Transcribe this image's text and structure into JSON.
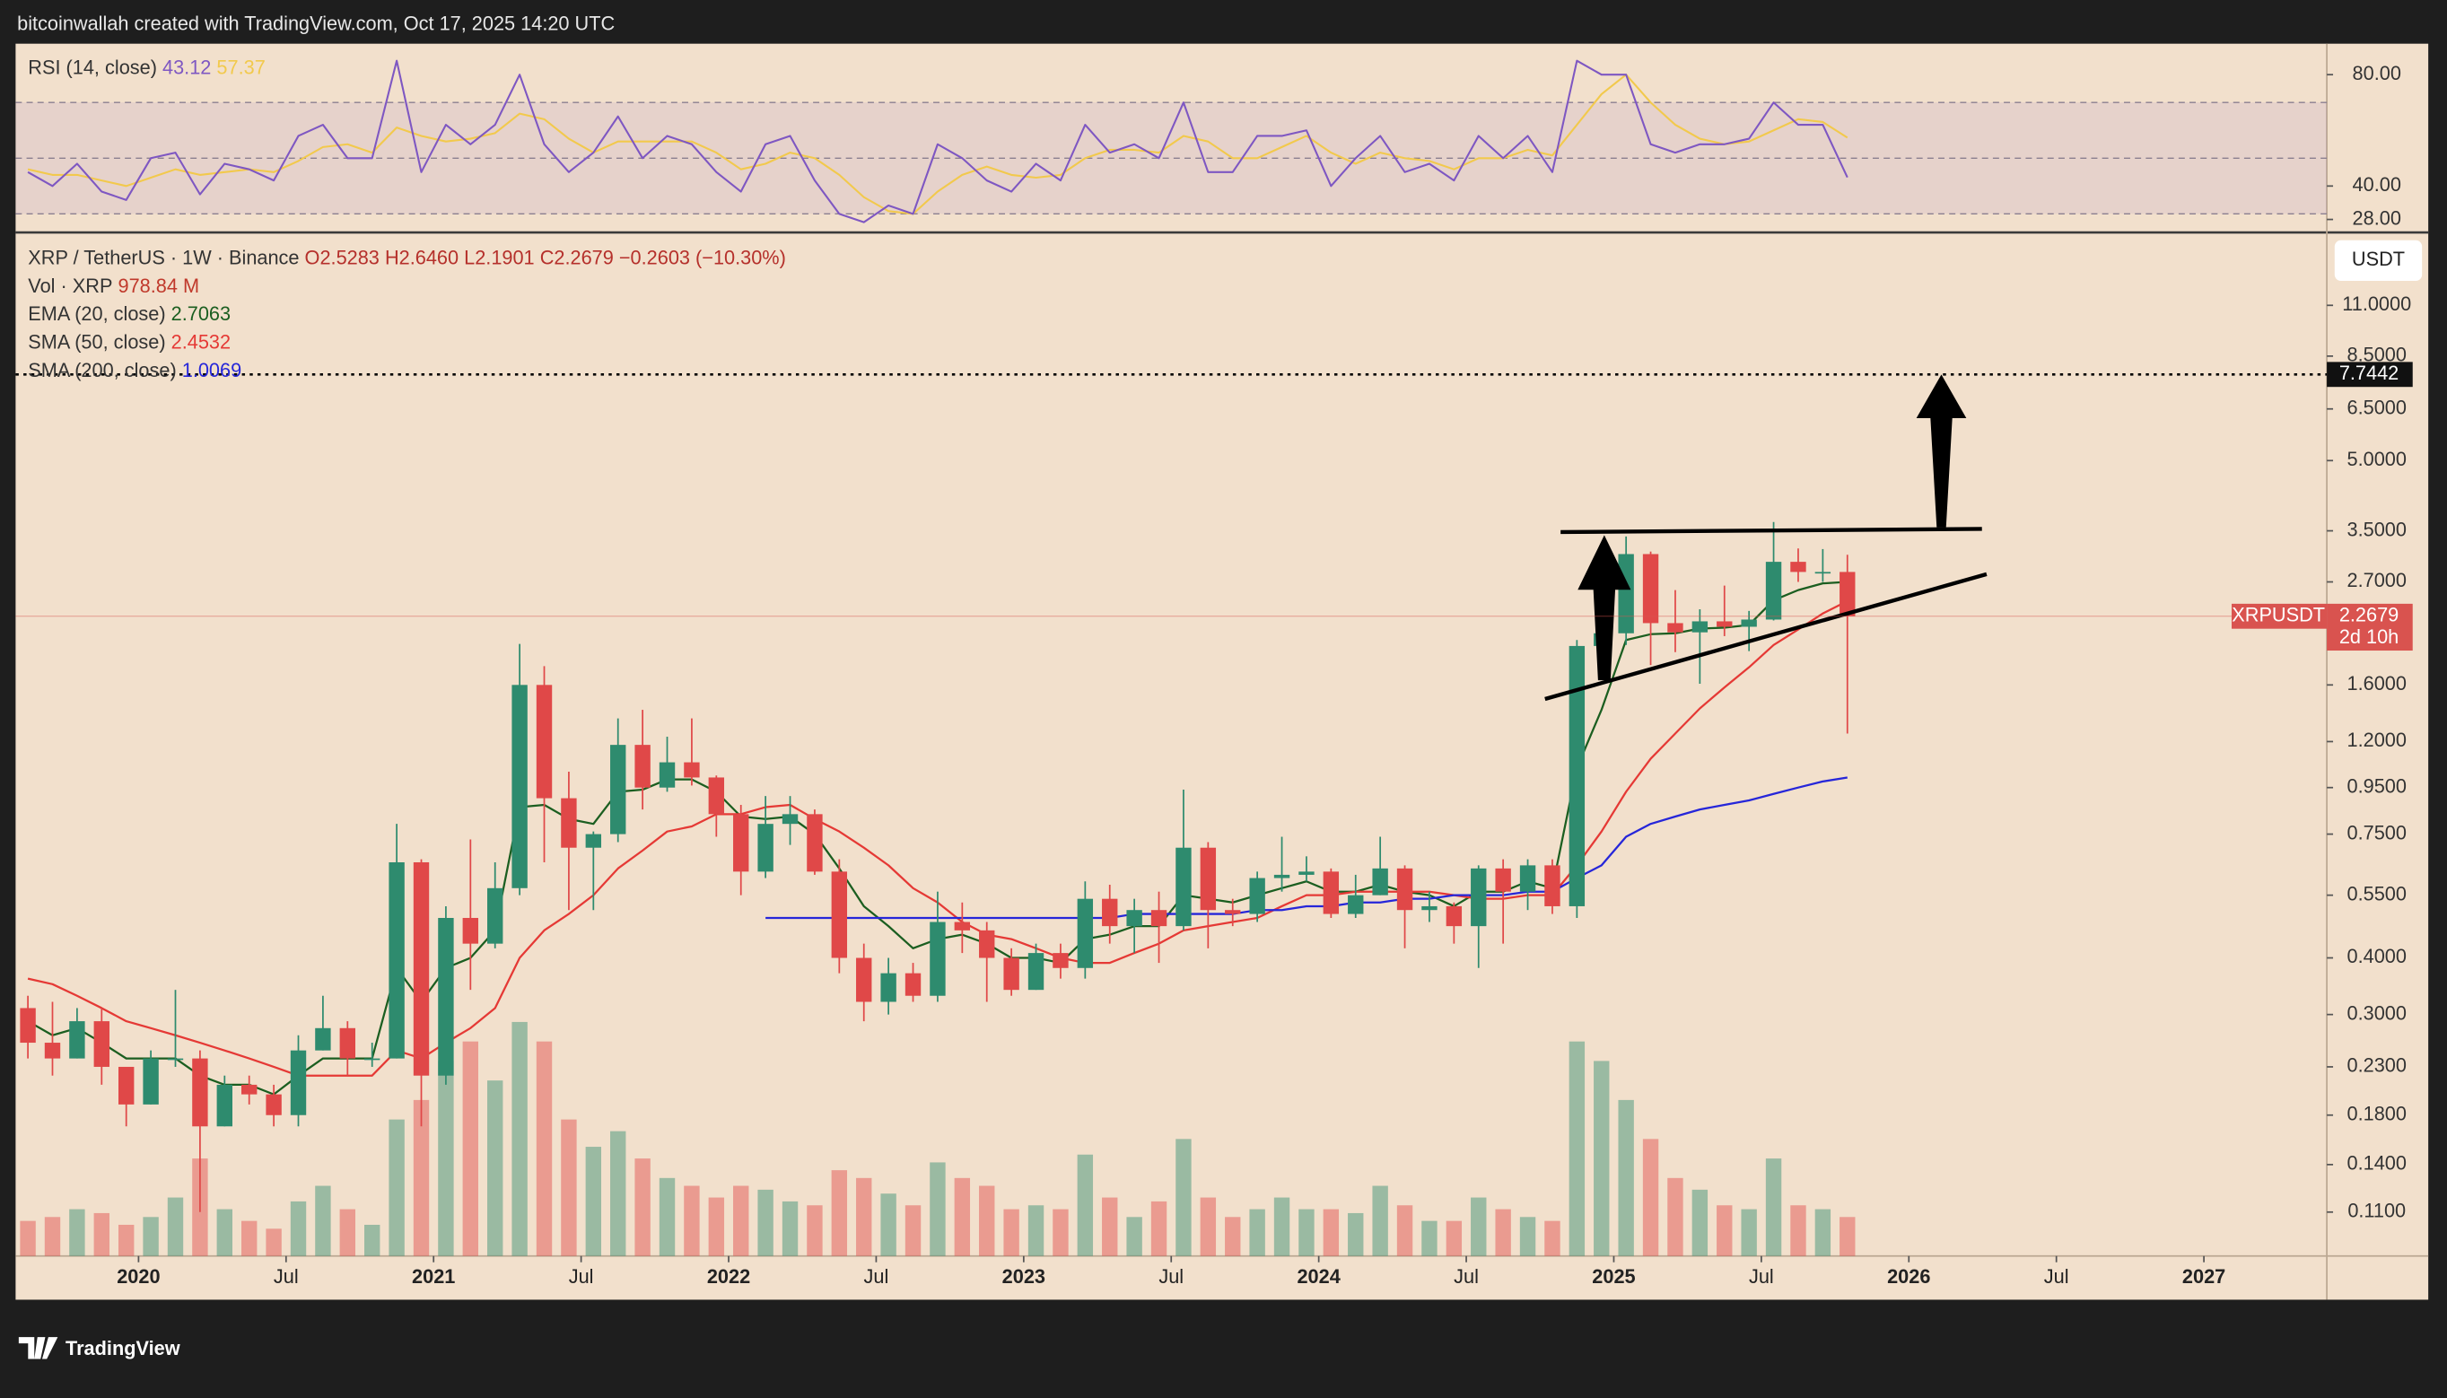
{
  "header": {
    "text": "bitcoinwallah created with TradingView.com, Oct 17, 2025 14:20 UTC"
  },
  "footer": {
    "logo": "TradingView"
  },
  "chart_data": {
    "type": "candlestick",
    "symbol": "XRP / TetherUS · 1W · Binance",
    "ohlc_labels": [
      "O2.5283",
      "H2.6460",
      "L2.1901",
      "C2.2679"
    ],
    "change": "−0.2603 (−10.30%)",
    "currency": "USDT",
    "up_color": "#2e8b6e",
    "down_color": "#e04848",
    "log_scale": true,
    "grid": false,
    "ylim": [
      0.088,
      15.8
    ],
    "yticks": [
      {
        "value": 0.11,
        "label": "0.1100"
      },
      {
        "value": 0.14,
        "label": "0.1400"
      },
      {
        "value": 0.18,
        "label": "0.1800"
      },
      {
        "value": 0.23,
        "label": "0.2300"
      },
      {
        "value": 0.3,
        "label": "0.3000"
      },
      {
        "value": 0.4,
        "label": "0.4000"
      },
      {
        "value": 0.55,
        "label": "0.5500"
      },
      {
        "value": 0.75,
        "label": "0.7500"
      },
      {
        "value": 0.95,
        "label": "0.9500"
      },
      {
        "value": 1.2,
        "label": "1.2000"
      },
      {
        "value": 1.6,
        "label": "1.6000"
      },
      {
        "value": 2.7,
        "label": "2.7000"
      },
      {
        "value": 3.5,
        "label": "3.5000"
      },
      {
        "value": 5,
        "label": "5.0000"
      },
      {
        "value": 6.5,
        "label": "6.5000"
      },
      {
        "value": 8.5,
        "label": "8.5000"
      },
      {
        "value": 11,
        "label": "11.0000"
      }
    ],
    "xlim": [
      "2019-08",
      "2027-06"
    ],
    "xticks": [
      {
        "value": "2020-01",
        "label": "2020"
      },
      {
        "value": "2020-07",
        "label": "Jul"
      },
      {
        "value": "2021-01",
        "label": "2021"
      },
      {
        "value": "2021-07",
        "label": "Jul"
      },
      {
        "value": "2022-01",
        "label": "2022"
      },
      {
        "value": "2022-07",
        "label": "Jul"
      },
      {
        "value": "2023-01",
        "label": "2023"
      },
      {
        "value": "2023-07",
        "label": "Jul"
      },
      {
        "value": "2024-01",
        "label": "2024"
      },
      {
        "value": "2024-07",
        "label": "Jul"
      },
      {
        "value": "2025-01",
        "label": "2025"
      },
      {
        "value": "2025-07",
        "label": "Jul"
      },
      {
        "value": "2026-01",
        "label": "2026"
      },
      {
        "value": "2026-07",
        "label": "Jul"
      },
      {
        "value": "2027-01",
        "label": "2027"
      }
    ],
    "x": [
      "2019-08",
      "2019-09",
      "2019-10",
      "2019-11",
      "2019-12",
      "2020-01",
      "2020-02",
      "2020-03",
      "2020-04",
      "2020-05",
      "2020-06",
      "2020-07",
      "2020-08",
      "2020-09",
      "2020-10",
      "2020-11",
      "2020-12",
      "2021-01",
      "2021-02",
      "2021-03",
      "2021-04",
      "2021-05",
      "2021-06",
      "2021-07",
      "2021-08",
      "2021-09",
      "2021-10",
      "2021-11",
      "2021-12",
      "2022-01",
      "2022-02",
      "2022-03",
      "2022-04",
      "2022-05",
      "2022-06",
      "2022-07",
      "2022-08",
      "2022-09",
      "2022-10",
      "2022-11",
      "2022-12",
      "2023-01",
      "2023-02",
      "2023-03",
      "2023-04",
      "2023-05",
      "2023-06",
      "2023-07",
      "2023-08",
      "2023-09",
      "2023-10",
      "2023-11",
      "2023-12",
      "2024-01",
      "2024-02",
      "2024-03",
      "2024-04",
      "2024-05",
      "2024-06",
      "2024-07",
      "2024-08",
      "2024-09",
      "2024-10",
      "2024-11",
      "2024-12",
      "2025-01",
      "2025-02",
      "2025-03",
      "2025-04",
      "2025-05",
      "2025-06",
      "2025-07",
      "2025-08",
      "2025-09",
      "2025-10"
    ],
    "open": [
      0.31,
      0.26,
      0.24,
      0.29,
      0.23,
      0.19,
      0.24,
      0.24,
      0.17,
      0.21,
      0.2,
      0.18,
      0.25,
      0.28,
      0.24,
      0.24,
      0.65,
      0.22,
      0.49,
      0.43,
      0.57,
      1.6,
      0.9,
      0.7,
      0.75,
      1.18,
      0.95,
      1.08,
      1.0,
      0.83,
      0.62,
      0.79,
      0.83,
      0.62,
      0.4,
      0.32,
      0.37,
      0.33,
      0.48,
      0.46,
      0.4,
      0.34,
      0.41,
      0.38,
      0.54,
      0.47,
      0.51,
      0.47,
      0.7,
      0.51,
      0.5,
      0.6,
      0.61,
      0.62,
      0.5,
      0.55,
      0.63,
      0.51,
      0.52,
      0.47,
      0.63,
      0.56,
      0.64,
      0.52,
      1.95,
      2.08,
      3.11,
      2.19,
      2.09,
      2.21,
      2.15,
      2.23,
      2.99,
      2.84,
      2.84
    ],
    "high": [
      0.33,
      0.32,
      0.31,
      0.31,
      0.23,
      0.25,
      0.34,
      0.25,
      0.22,
      0.22,
      0.21,
      0.27,
      0.33,
      0.29,
      0.26,
      0.79,
      0.66,
      0.52,
      0.73,
      0.65,
      1.97,
      1.76,
      1.03,
      0.76,
      1.35,
      1.41,
      1.23,
      1.35,
      1.01,
      0.87,
      0.91,
      0.91,
      0.85,
      0.66,
      0.43,
      0.4,
      0.39,
      0.56,
      0.53,
      0.48,
      0.42,
      0.43,
      0.43,
      0.59,
      0.58,
      0.54,
      0.56,
      0.94,
      0.72,
      0.54,
      0.62,
      0.74,
      0.67,
      0.63,
      0.61,
      0.74,
      0.64,
      0.56,
      0.53,
      0.64,
      0.66,
      0.66,
      0.66,
      2.01,
      2.9,
      3.4,
      3.15,
      2.59,
      2.35,
      2.65,
      2.33,
      3.66,
      3.2,
      3.19,
      3.1
    ],
    "low": [
      0.24,
      0.22,
      0.24,
      0.21,
      0.17,
      0.19,
      0.23,
      0.11,
      0.17,
      0.19,
      0.17,
      0.17,
      0.25,
      0.22,
      0.23,
      0.24,
      0.17,
      0.21,
      0.34,
      0.42,
      0.55,
      0.65,
      0.51,
      0.51,
      0.72,
      0.85,
      0.93,
      0.96,
      0.74,
      0.55,
      0.6,
      0.71,
      0.61,
      0.37,
      0.29,
      0.3,
      0.32,
      0.32,
      0.41,
      0.32,
      0.33,
      0.34,
      0.36,
      0.36,
      0.43,
      0.41,
      0.39,
      0.46,
      0.42,
      0.47,
      0.48,
      0.56,
      0.59,
      0.49,
      0.49,
      0.55,
      0.42,
      0.48,
      0.43,
      0.38,
      0.43,
      0.51,
      0.5,
      0.49,
      1.9,
      1.96,
      1.77,
      1.89,
      1.61,
      2.05,
      1.9,
      2.22,
      2.7,
      2.7,
      1.25
    ],
    "close": [
      0.26,
      0.24,
      0.29,
      0.23,
      0.19,
      0.24,
      0.24,
      0.17,
      0.21,
      0.2,
      0.18,
      0.25,
      0.28,
      0.24,
      0.24,
      0.65,
      0.22,
      0.49,
      0.43,
      0.57,
      1.6,
      0.9,
      0.7,
      0.75,
      1.18,
      0.95,
      1.08,
      1.0,
      0.83,
      0.62,
      0.79,
      0.83,
      0.62,
      0.4,
      0.32,
      0.37,
      0.33,
      0.48,
      0.46,
      0.4,
      0.34,
      0.41,
      0.38,
      0.54,
      0.47,
      0.51,
      0.47,
      0.7,
      0.51,
      0.5,
      0.6,
      0.61,
      0.62,
      0.5,
      0.55,
      0.63,
      0.51,
      0.52,
      0.47,
      0.63,
      0.56,
      0.64,
      0.52,
      1.95,
      2.08,
      3.11,
      2.19,
      2.09,
      2.21,
      2.15,
      2.23,
      2.99,
      2.84,
      2.84,
      2.2679
    ],
    "overlays": [
      {
        "name": "EMA (20, close)",
        "value_label": "2.7063",
        "color": "#1b5e20",
        "values": [
          0.29,
          0.27,
          0.28,
          0.26,
          0.24,
          0.24,
          0.24,
          0.22,
          0.21,
          0.21,
          0.2,
          0.22,
          0.24,
          0.24,
          0.24,
          0.38,
          0.32,
          0.38,
          0.4,
          0.46,
          0.86,
          0.87,
          0.81,
          0.79,
          0.93,
          0.94,
          0.99,
          0.99,
          0.93,
          0.82,
          0.81,
          0.82,
          0.75,
          0.63,
          0.52,
          0.47,
          0.42,
          0.44,
          0.45,
          0.43,
          0.4,
          0.4,
          0.39,
          0.44,
          0.45,
          0.47,
          0.47,
          0.55,
          0.54,
          0.53,
          0.55,
          0.57,
          0.59,
          0.56,
          0.56,
          0.58,
          0.56,
          0.55,
          0.52,
          0.56,
          0.56,
          0.59,
          0.57,
          1.05,
          1.41,
          2.01,
          2.07,
          2.08,
          2.13,
          2.14,
          2.17,
          2.46,
          2.59,
          2.68,
          2.7
        ]
      },
      {
        "name": "SMA (50, close)",
        "value_label": "2.4532",
        "color": "#e53935",
        "values": [
          0.36,
          0.35,
          0.33,
          0.31,
          0.29,
          0.28,
          0.27,
          0.26,
          0.25,
          0.24,
          0.23,
          0.22,
          0.22,
          0.22,
          0.22,
          0.25,
          0.24,
          0.26,
          0.28,
          0.31,
          0.4,
          0.46,
          0.5,
          0.55,
          0.63,
          0.69,
          0.76,
          0.78,
          0.83,
          0.83,
          0.86,
          0.87,
          0.81,
          0.76,
          0.7,
          0.64,
          0.57,
          0.53,
          0.48,
          0.45,
          0.44,
          0.42,
          0.4,
          0.39,
          0.39,
          0.41,
          0.43,
          0.46,
          0.47,
          0.48,
          0.49,
          0.52,
          0.55,
          0.55,
          0.56,
          0.56,
          0.56,
          0.56,
          0.55,
          0.54,
          0.54,
          0.55,
          0.55,
          0.64,
          0.76,
          0.93,
          1.1,
          1.25,
          1.42,
          1.58,
          1.75,
          1.96,
          2.12,
          2.3,
          2.45
        ]
      },
      {
        "name": "SMA (200, close)",
        "value_label": "1.0069",
        "color": "#2626d9",
        "values": [
          null,
          null,
          null,
          null,
          null,
          null,
          null,
          null,
          null,
          null,
          null,
          null,
          null,
          null,
          null,
          null,
          null,
          null,
          null,
          null,
          null,
          null,
          null,
          null,
          null,
          null,
          null,
          null,
          null,
          null,
          0.49,
          0.49,
          0.49,
          0.49,
          0.49,
          0.49,
          0.49,
          0.49,
          0.49,
          0.49,
          0.49,
          0.49,
          0.49,
          0.49,
          0.49,
          0.5,
          0.5,
          0.5,
          0.5,
          0.5,
          0.51,
          0.51,
          0.52,
          0.52,
          0.53,
          0.53,
          0.54,
          0.54,
          0.55,
          0.55,
          0.55,
          0.56,
          0.56,
          0.6,
          0.64,
          0.74,
          0.79,
          0.82,
          0.85,
          0.87,
          0.89,
          0.92,
          0.95,
          0.98,
          1.0
        ]
      }
    ],
    "volume": {
      "name": "Vol · XRP",
      "value_label": "978.84 M",
      "values": [
        900,
        1000,
        1200,
        1100,
        800,
        1000,
        1500,
        2500,
        1200,
        900,
        700,
        1400,
        1800,
        1200,
        800,
        3500,
        4000,
        5000,
        5500,
        4500,
        6000,
        5500,
        3500,
        2800,
        3200,
        2500,
        2000,
        1800,
        1500,
        1800,
        1700,
        1400,
        1300,
        2200,
        2000,
        1600,
        1300,
        2400,
        2000,
        1800,
        1200,
        1300,
        1200,
        2600,
        1500,
        1000,
        1400,
        3000,
        1500,
        1000,
        1200,
        1500,
        1200,
        1200,
        1100,
        1800,
        1300,
        900,
        900,
        1500,
        1200,
        1000,
        900,
        5500,
        5000,
        4000,
        3000,
        2000,
        1700,
        1300,
        1200,
        2500,
        1300,
        1200,
        1000
      ]
    },
    "rsi": {
      "name": "RSI (14, close)",
      "value_label": "43.12",
      "ma_label": "57.37",
      "color": "#7e57c2",
      "ma_color": "#f2c94c",
      "ylim": [
        25,
        90
      ],
      "yticks": [
        {
          "value": 28,
          "label": "28.00"
        },
        {
          "value": 40,
          "label": "40.00"
        },
        {
          "value": 80,
          "label": "80.00"
        }
      ],
      "bands": [
        30,
        50,
        70
      ],
      "values": [
        45,
        40,
        48,
        38,
        35,
        50,
        52,
        37,
        48,
        46,
        42,
        58,
        62,
        50,
        50,
        85,
        45,
        62,
        55,
        62,
        80,
        55,
        45,
        52,
        65,
        50,
        58,
        55,
        45,
        38,
        55,
        58,
        42,
        30,
        27,
        33,
        30,
        55,
        50,
        42,
        38,
        48,
        42,
        62,
        52,
        55,
        50,
        70,
        45,
        45,
        58,
        58,
        60,
        40,
        50,
        58,
        45,
        48,
        42,
        58,
        50,
        58,
        45,
        85,
        80,
        80,
        55,
        52,
        55,
        55,
        57,
        70,
        62,
        62,
        43.12
      ],
      "ma_values": [
        46,
        44,
        44,
        42,
        40,
        43,
        46,
        44,
        45,
        46,
        45,
        49,
        54,
        55,
        52,
        61,
        58,
        56,
        57,
        59,
        66,
        64,
        57,
        52,
        56,
        56,
        56,
        56,
        52,
        46,
        48,
        52,
        50,
        44,
        36,
        31,
        30,
        38,
        44,
        47,
        44,
        43,
        44,
        50,
        53,
        53,
        52,
        58,
        56,
        50,
        50,
        54,
        58,
        52,
        48,
        52,
        50,
        49,
        46,
        50,
        50,
        53,
        51,
        62,
        73,
        80,
        70,
        62,
        57,
        55,
        56,
        60,
        64,
        63,
        57.37
      ]
    },
    "target": {
      "value": 7.7442,
      "label": "7.7442"
    },
    "last_price": {
      "name": "XRPUSDT",
      "value": 2.2679,
      "label": "2.2679",
      "countdown": "2d 10h"
    }
  }
}
